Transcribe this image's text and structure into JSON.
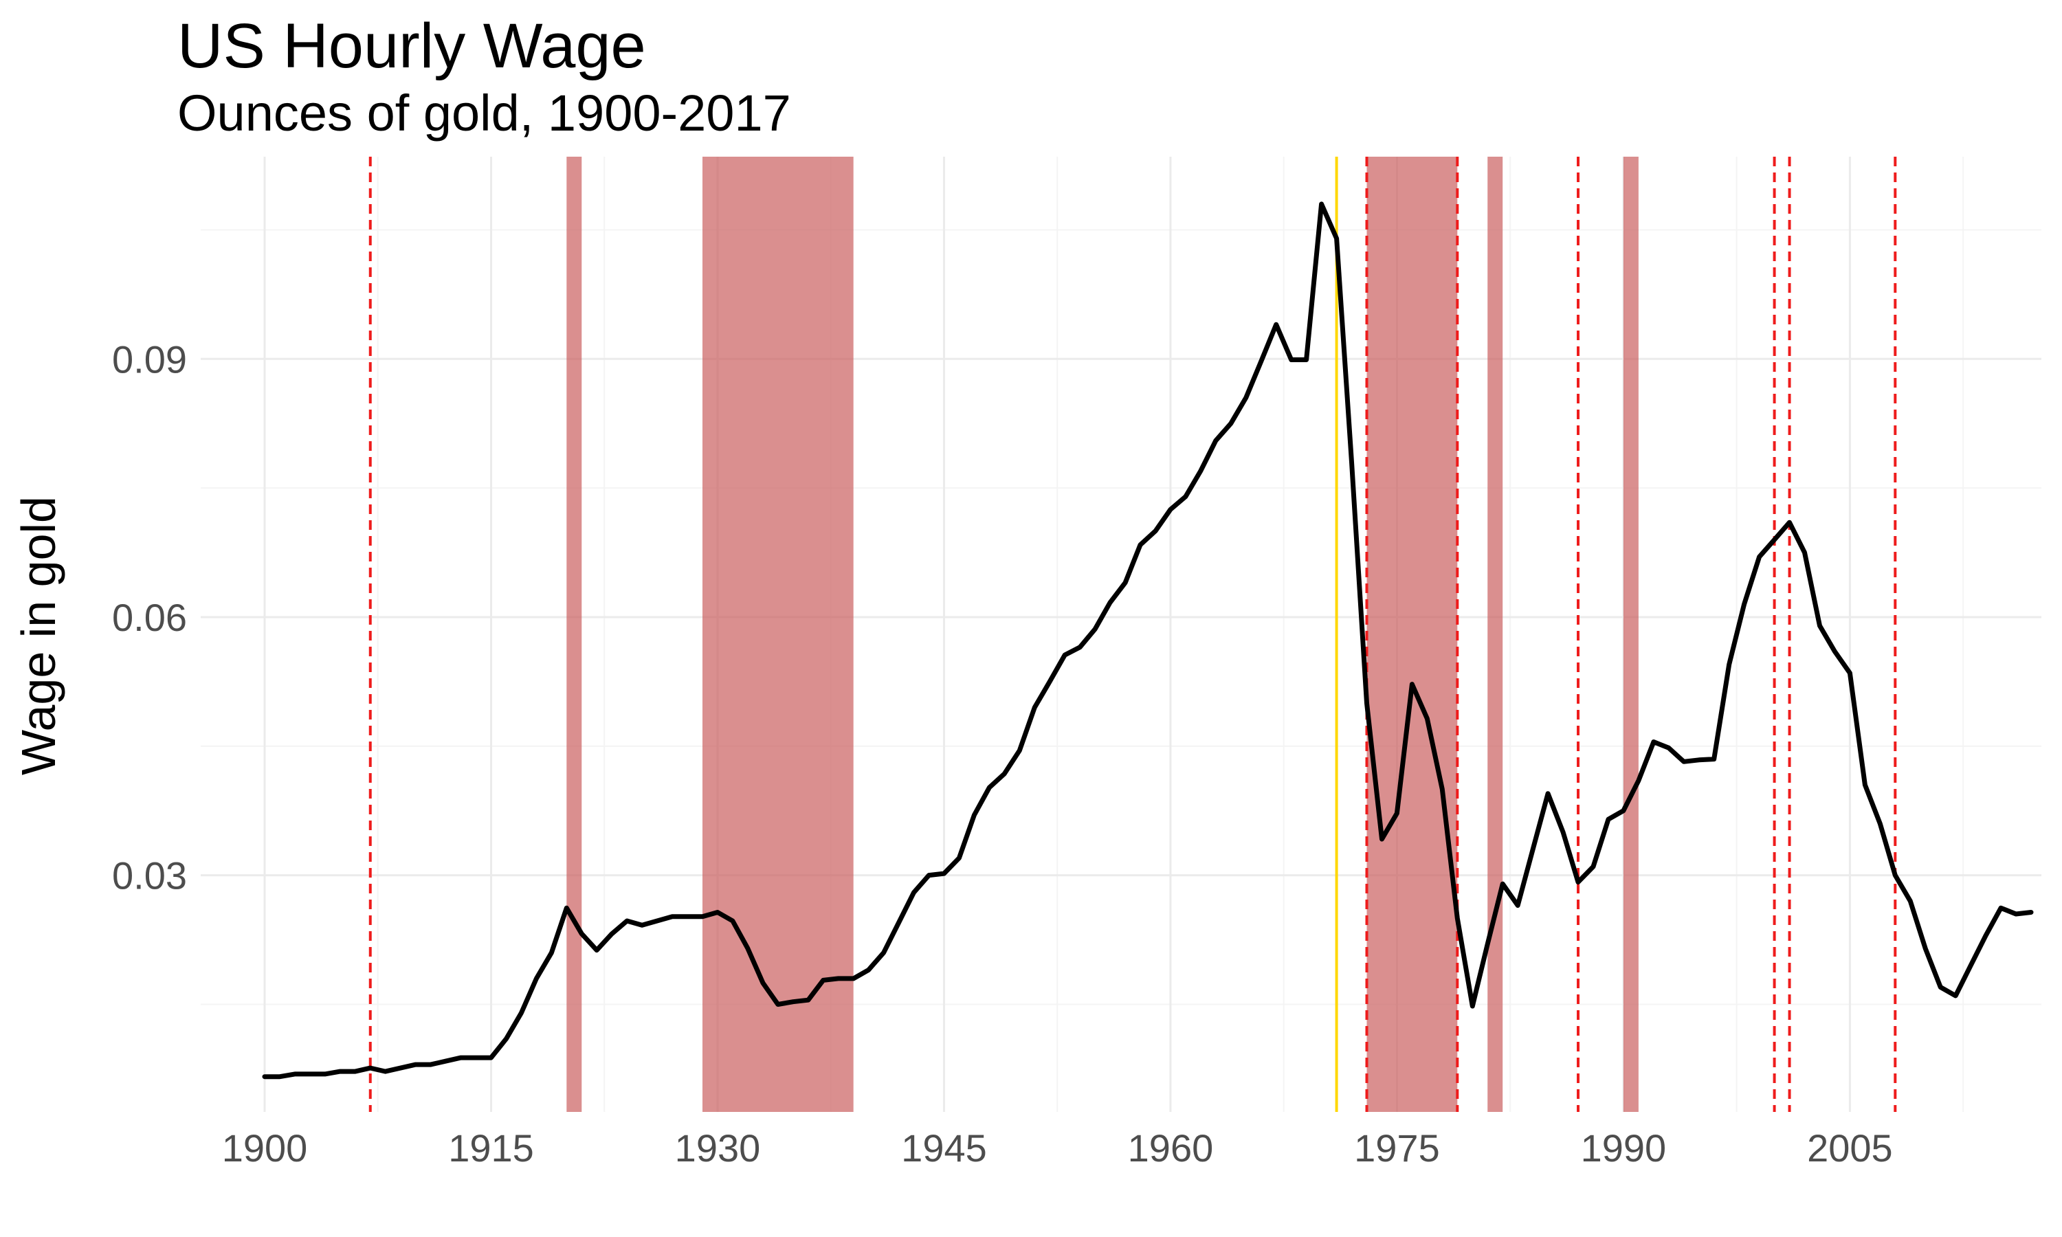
{
  "chart_data": {
    "type": "line",
    "title": "US Hourly Wage",
    "subtitle": "Ounces of gold, 1900-2017",
    "xlabel": "",
    "ylabel": "Wage in gold",
    "xlim": [
      1900,
      2017
    ],
    "ylim": [
      0.0025,
      0.1135
    ],
    "x_ticks": [
      1900,
      1915,
      1930,
      1945,
      1960,
      1975,
      1990,
      2005
    ],
    "x_minor_ticks": [
      1907.5,
      1922.5,
      1937.5,
      1952.5,
      1967.5,
      1982.5,
      1997.5,
      2012.5
    ],
    "y_ticks": [
      0.03,
      0.06,
      0.09
    ],
    "y_tick_labels": [
      "0.03",
      "0.06",
      "0.09"
    ],
    "y_minor_ticks": [
      0.015,
      0.045,
      0.075,
      0.105
    ],
    "grid": true,
    "colors": {
      "line": "#000000",
      "shade": "#c85a5a",
      "dashed": "#ee1c1c",
      "gold_line": "#ffd700"
    },
    "series": [
      {
        "x": [
          1900,
          1901,
          1902,
          1903,
          1904,
          1905,
          1906,
          1907,
          1908,
          1909,
          1910,
          1911,
          1912,
          1913,
          1914,
          1915,
          1916,
          1917,
          1918,
          1919,
          1920,
          1921,
          1922,
          1923,
          1924,
          1925,
          1926,
          1927,
          1928,
          1929,
          1930,
          1931,
          1932,
          1933,
          1934,
          1935,
          1936,
          1937,
          1938,
          1939,
          1940,
          1941,
          1942,
          1943,
          1944,
          1945,
          1946,
          1947,
          1948,
          1949,
          1950,
          1951,
          1952,
          1953,
          1954,
          1955,
          1956,
          1957,
          1958,
          1959,
          1960,
          1961,
          1962,
          1963,
          1964,
          1965,
          1966,
          1967,
          1968,
          1969,
          1970,
          1971,
          1972,
          1973,
          1974,
          1975,
          1976,
          1977,
          1978,
          1979,
          1980,
          1981,
          1982,
          1983,
          1984,
          1985,
          1986,
          1987,
          1988,
          1989,
          1990,
          1991,
          1992,
          1993,
          1994,
          1995,
          1996,
          1997,
          1998,
          1999,
          2000,
          2001,
          2002,
          2003,
          2004,
          2005,
          2006,
          2007,
          2008,
          2009,
          2010,
          2011,
          2012,
          2013,
          2014,
          2015,
          2016,
          2017
        ],
        "values": [
          0.0066,
          0.0066,
          0.0069,
          0.0069,
          0.0069,
          0.0072,
          0.0072,
          0.0076,
          0.0072,
          0.0076,
          0.008,
          0.008,
          0.0084,
          0.0088,
          0.0088,
          0.0088,
          0.011,
          0.014,
          0.018,
          0.021,
          0.0262,
          0.0232,
          0.0213,
          0.0232,
          0.0247,
          0.0242,
          0.0247,
          0.0252,
          0.0252,
          0.0252,
          0.0257,
          0.0247,
          0.0215,
          0.0175,
          0.015,
          0.0153,
          0.0155,
          0.0178,
          0.018,
          0.018,
          0.019,
          0.021,
          0.0245,
          0.028,
          0.03,
          0.0302,
          0.032,
          0.037,
          0.0402,
          0.0418,
          0.0445,
          0.0495,
          0.0525,
          0.0556,
          0.0565,
          0.0586,
          0.0617,
          0.064,
          0.0684,
          0.07,
          0.0725,
          0.074,
          0.077,
          0.0805,
          0.0825,
          0.0855,
          0.0897,
          0.094,
          0.0899,
          0.0899,
          0.108,
          0.104,
          0.078,
          0.05,
          0.0342,
          0.0372,
          0.0522,
          0.0482,
          0.04,
          0.025,
          0.0148,
          0.022,
          0.029,
          0.0265,
          0.033,
          0.0395,
          0.035,
          0.0292,
          0.031,
          0.0365,
          0.0375,
          0.041,
          0.0455,
          0.0448,
          0.0432,
          0.0434,
          0.0435,
          0.0545,
          0.0615,
          0.067,
          0.069,
          0.071,
          0.0675,
          0.059,
          0.056,
          0.0535,
          0.0405,
          0.036,
          0.03,
          0.027,
          0.0215,
          0.017,
          0.016,
          0.0195,
          0.023,
          0.0262,
          0.0255,
          0.0257
        ]
      }
    ],
    "shaded_periods": [
      [
        1920,
        1921
      ],
      [
        1929,
        1939
      ],
      [
        1973,
        1979
      ],
      [
        1981,
        1982
      ],
      [
        1990,
        1991
      ]
    ],
    "dashed_lines": [
      1907,
      1973,
      1979,
      1987,
      2000,
      2001,
      2008
    ],
    "solid_lines": [
      1971
    ]
  }
}
